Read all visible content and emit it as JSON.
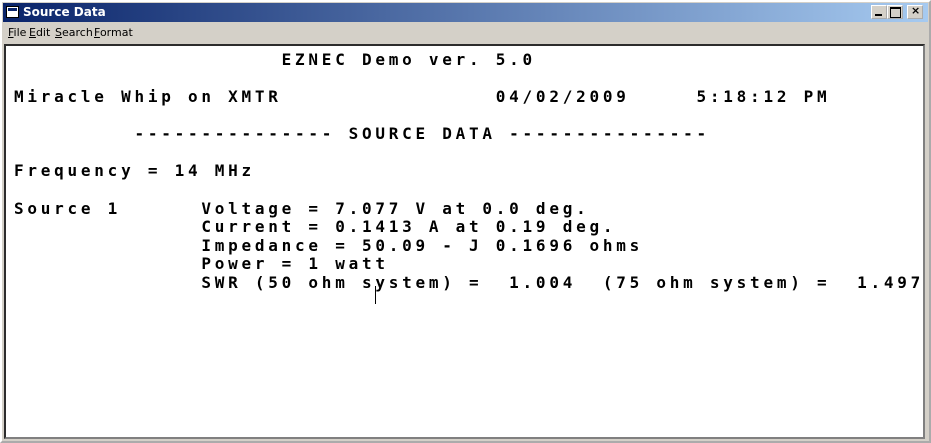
{
  "window": {
    "title": "Source Data"
  },
  "menu": [
    "File",
    "Edit",
    "Search",
    "Format"
  ],
  "lines": [
    "                    EZNEC Demo ver. 5.0",
    "Miracle Whip on XMTR                04/02/2009     5:18:12 PM",
    "         --------------- SOURCE DATA ---------------",
    "Frequency = 14 MHz",
    "Source 1      Voltage = 7.077 V at 0.0 deg.",
    "              Current = 0.1413 A at 0.19 deg.",
    "              Impedance = 50.09 - J 0.1696 ohms",
    "              Power = 1 watt",
    "              SWR (50 ohm system) =  1.004  (75 ohm system) =  1.497"
  ]
}
